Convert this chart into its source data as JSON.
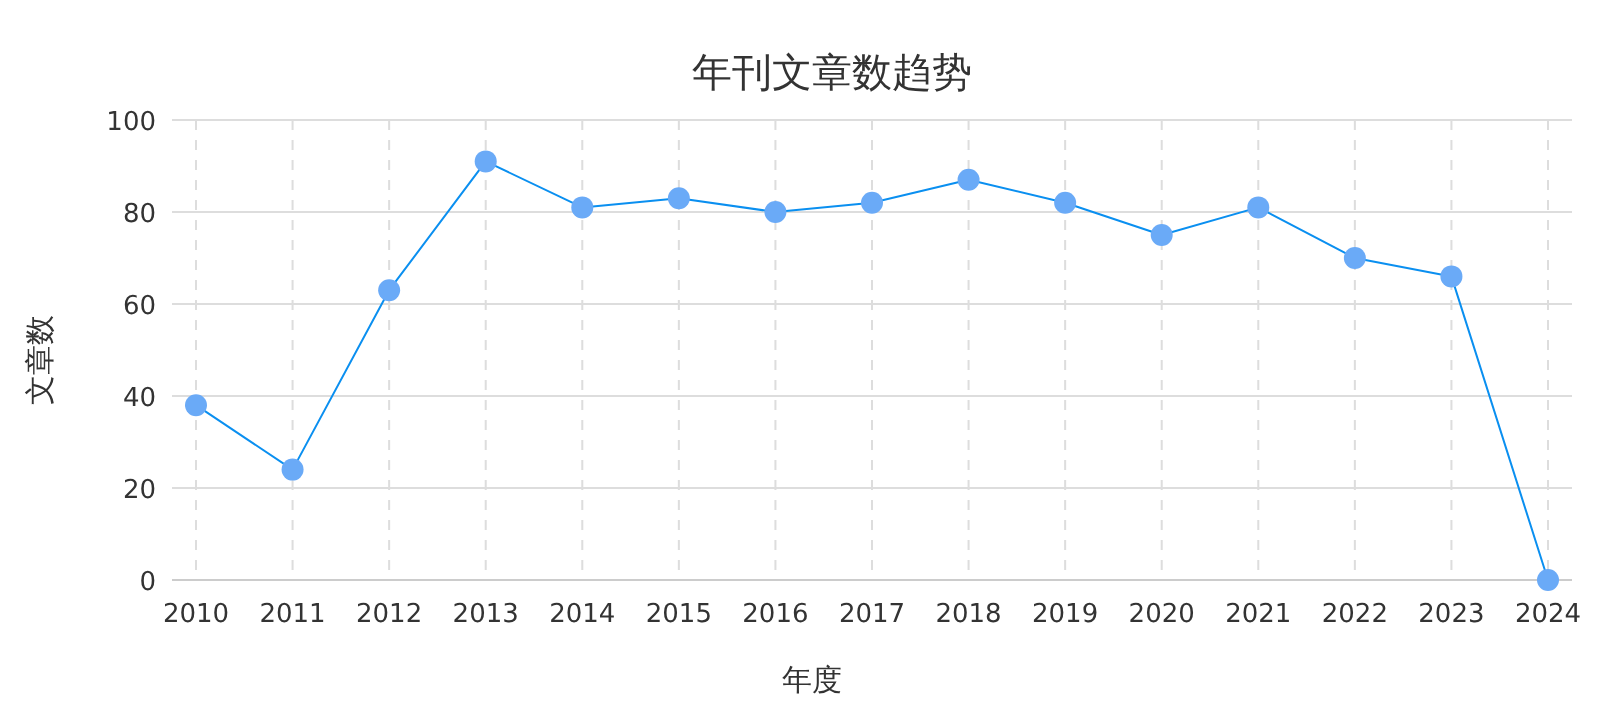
{
  "chart_data": {
    "type": "line",
    "title": "年刊文章数趋势",
    "xlabel": "年度",
    "ylabel": "文章数",
    "categories": [
      "2010",
      "2011",
      "2012",
      "2013",
      "2014",
      "2015",
      "2016",
      "2017",
      "2018",
      "2019",
      "2020",
      "2021",
      "2022",
      "2023",
      "2024"
    ],
    "series": [
      {
        "color": "#0a8ff0",
        "values": [
          38,
          24,
          63,
          91,
          81,
          83,
          80,
          82,
          87,
          82,
          75,
          81,
          70,
          66,
          0
        ]
      }
    ],
    "ylim": [
      0,
      100
    ],
    "yticks": [
      0,
      20,
      40,
      60,
      80,
      100
    ],
    "grid": true,
    "marker": "circle",
    "line_style": "solid"
  }
}
